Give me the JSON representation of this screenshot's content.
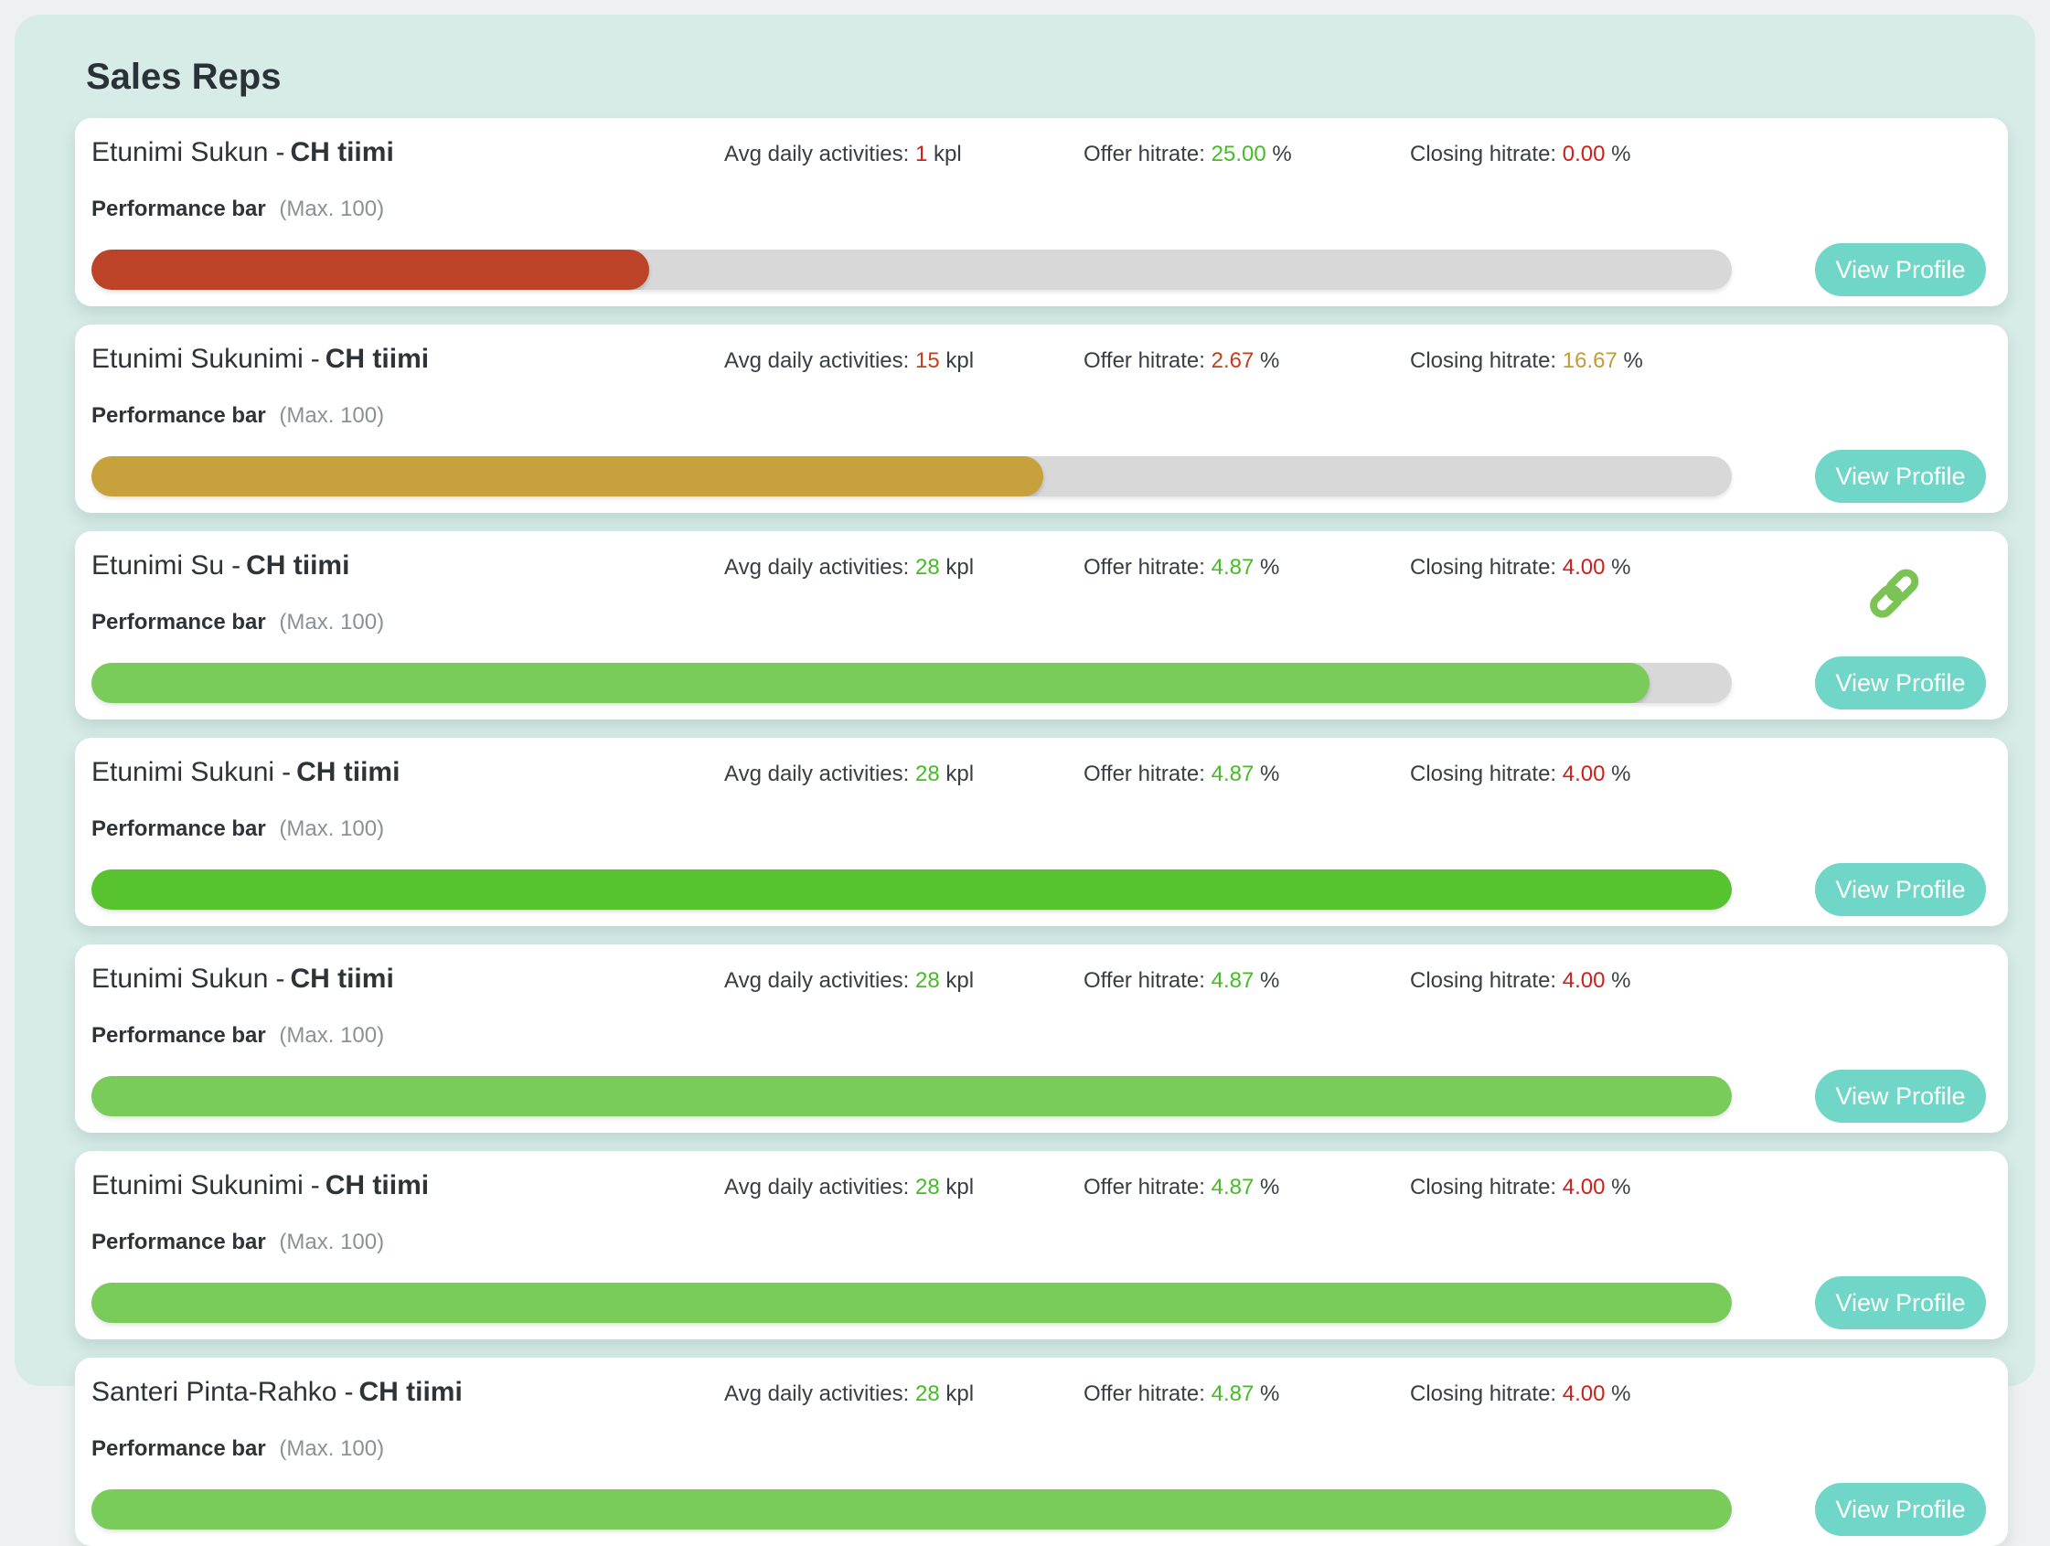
{
  "title": "Sales Reps",
  "labels": {
    "separator": "-",
    "avg_daily_activities": "Avg daily activities:",
    "unit_activities": "kpl",
    "offer_hitrate": "Offer hitrate:",
    "closing_hitrate": "Closing hitrate:",
    "unit_percent": "%",
    "performance_bar": "Performance bar",
    "performance_max": "(Max. 100)",
    "view_profile": "View Profile"
  },
  "icons": {
    "link": "chain-link-icon"
  },
  "colors": {
    "page_bg": "#eef1f2",
    "panel_bg": "#d7ebe7",
    "card_bg": "#ffffff",
    "track": "#d8d8d8",
    "button": "#70d7c8",
    "text_dark": "#2d3337",
    "text_gray": "#8a9196",
    "value_green": "#47bb27",
    "value_red": "#cc201b",
    "value_brick": "#c2401f",
    "value_gold": "#c49b38",
    "bar_red": "#bc4327",
    "bar_gold": "#c7a23c",
    "bar_light_green": "#79cb5a",
    "bar_vivid_green": "#56c32f",
    "link_icon": "#7cc356"
  },
  "reps": [
    {
      "name": "Etunimi Sukun",
      "team": "CH tiimi",
      "activities": {
        "value": "1",
        "color": "#cc201b"
      },
      "offer": {
        "value": "25.00",
        "color": "#47bb27"
      },
      "closing": {
        "value": "0.00",
        "color": "#cc201b"
      },
      "bar": {
        "percent": 34,
        "color": "#bc4327"
      },
      "has_link": false
    },
    {
      "name": "Etunimi Sukunimi",
      "team": "CH tiimi",
      "activities": {
        "value": "15",
        "color": "#c2401f"
      },
      "offer": {
        "value": "2.67",
        "color": "#c2401f"
      },
      "closing": {
        "value": "16.67",
        "color": "#c49b38"
      },
      "bar": {
        "percent": 58,
        "color": "#c7a23c"
      },
      "has_link": false
    },
    {
      "name": "Etunimi Su",
      "team": "CH tiimi",
      "activities": {
        "value": "28",
        "color": "#47bb27"
      },
      "offer": {
        "value": "4.87",
        "color": "#47bb27"
      },
      "closing": {
        "value": "4.00",
        "color": "#cc201b"
      },
      "bar": {
        "percent": 95,
        "color": "#79cb5a"
      },
      "has_link": true
    },
    {
      "name": "Etunimi Sukuni",
      "team": "CH tiimi",
      "activities": {
        "value": "28",
        "color": "#47bb27"
      },
      "offer": {
        "value": "4.87",
        "color": "#47bb27"
      },
      "closing": {
        "value": "4.00",
        "color": "#cc201b"
      },
      "bar": {
        "percent": 100,
        "color": "#56c32f"
      },
      "has_link": false
    },
    {
      "name": "Etunimi Sukun",
      "team": "CH tiimi",
      "activities": {
        "value": "28",
        "color": "#47bb27"
      },
      "offer": {
        "value": "4.87",
        "color": "#47bb27"
      },
      "closing": {
        "value": "4.00",
        "color": "#cc201b"
      },
      "bar": {
        "percent": 100,
        "color": "#79cb5a"
      },
      "has_link": false
    },
    {
      "name": "Etunimi Sukunimi",
      "team": "CH tiimi",
      "activities": {
        "value": "28",
        "color": "#47bb27"
      },
      "offer": {
        "value": "4.87",
        "color": "#47bb27"
      },
      "closing": {
        "value": "4.00",
        "color": "#cc201b"
      },
      "bar": {
        "percent": 100,
        "color": "#79cb5a"
      },
      "has_link": false
    },
    {
      "name": "Santeri Pinta-Rahko",
      "team": "CH tiimi",
      "activities": {
        "value": "28",
        "color": "#47bb27"
      },
      "offer": {
        "value": "4.87",
        "color": "#47bb27"
      },
      "closing": {
        "value": "4.00",
        "color": "#cc201b"
      },
      "bar": {
        "percent": 100,
        "color": "#79cb5a"
      },
      "has_link": false
    }
  ]
}
